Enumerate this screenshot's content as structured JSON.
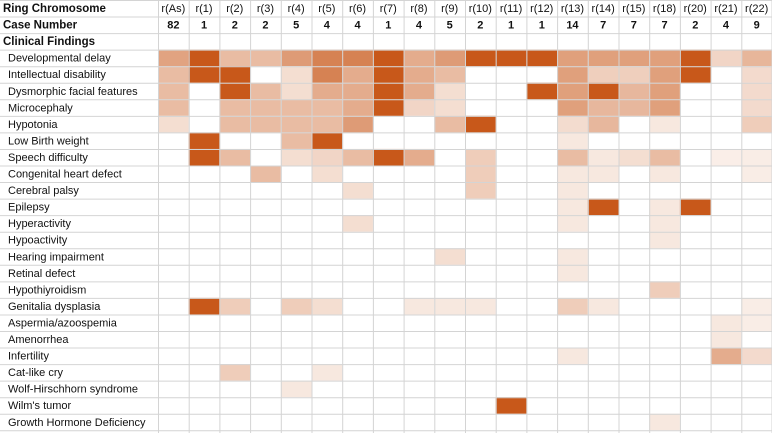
{
  "chart_data": {
    "type": "heatmap",
    "title": "",
    "header_label": "Ring Chromosome",
    "count_label": "Case Number",
    "section_label": "Clinical Findings",
    "columns": [
      "r(As)",
      "r(1)",
      "r(2)",
      "r(3)",
      "r(4)",
      "r(5)",
      "r(6)",
      "r(7)",
      "r(8)",
      "r(9)",
      "r(10)",
      "r(11)",
      "r(12)",
      "r(13)",
      "r(14)",
      "r(15)",
      "r(18)",
      "r(20)",
      "r(21)",
      "r(22)"
    ],
    "case_numbers": [
      "82",
      "1",
      "2",
      "2",
      "5",
      "4",
      "4",
      "1",
      "4",
      "5",
      "2",
      "1",
      "1",
      "14",
      "7",
      "7",
      "7",
      "2",
      "4",
      "9"
    ],
    "rows": [
      "Developmental delay",
      "Intellectual disability",
      "Dysmorphic facial features",
      "Microcephaly",
      "Hypotonia",
      "Low Birth weight",
      "Speech difficulty",
      "Congenital heart defect",
      "Cerebral palsy",
      "Epilepsy",
      "Hyperactivity",
      "Hypoactivity",
      "Hearing impairment",
      "Retinal defect",
      "Hypothiyroidism",
      "Genitalia dysplasia",
      "Aspermia/azoospemia",
      "Amenorrhea",
      "Infertility",
      "Cat-like cry",
      "Wolf-Hirschhorn syndrome",
      "Wilm's tumor",
      "Growth Hormone Deficiency"
    ],
    "values": [
      [
        0.55,
        1.0,
        0.4,
        0.4,
        0.6,
        0.75,
        0.75,
        1.0,
        0.5,
        0.6,
        1.0,
        1.0,
        1.0,
        0.57,
        0.57,
        0.57,
        0.57,
        1.0,
        0.25,
        0.44
      ],
      [
        0.4,
        1.0,
        1.0,
        0.0,
        0.2,
        0.75,
        0.5,
        1.0,
        0.5,
        0.4,
        0.0,
        0.0,
        0.0,
        0.57,
        0.29,
        0.29,
        0.57,
        1.0,
        0.0,
        0.22
      ],
      [
        0.4,
        0.0,
        1.0,
        0.4,
        0.2,
        0.5,
        0.5,
        1.0,
        0.5,
        0.2,
        0.0,
        0.0,
        1.0,
        0.57,
        1.0,
        0.43,
        0.57,
        0.0,
        0.0,
        0.22
      ],
      [
        0.4,
        0.0,
        0.4,
        0.4,
        0.4,
        0.4,
        0.5,
        1.0,
        0.25,
        0.2,
        0.0,
        0.0,
        0.0,
        0.57,
        0.43,
        0.43,
        0.57,
        0.0,
        0.0,
        0.22
      ],
      [
        0.2,
        0.0,
        0.4,
        0.4,
        0.4,
        0.4,
        0.6,
        0.0,
        0.0,
        0.4,
        1.0,
        0.0,
        0.0,
        0.21,
        0.43,
        0.0,
        0.14,
        0.0,
        0.0,
        0.3
      ],
      [
        0.0,
        1.0,
        0.0,
        0.0,
        0.4,
        1.0,
        0.0,
        0.0,
        0.0,
        0.0,
        0.0,
        0.0,
        0.0,
        0.14,
        0.0,
        0.0,
        0.0,
        0.0,
        0.0,
        0.0
      ],
      [
        0.0,
        1.0,
        0.4,
        0.0,
        0.2,
        0.25,
        0.4,
        1.0,
        0.5,
        0.0,
        0.3,
        0.0,
        0.0,
        0.4,
        0.14,
        0.2,
        0.4,
        0.0,
        0.1,
        0.11
      ],
      [
        0.0,
        0.0,
        0.0,
        0.4,
        0.0,
        0.2,
        0.0,
        0.0,
        0.0,
        0.0,
        0.3,
        0.0,
        0.0,
        0.14,
        0.14,
        0.0,
        0.14,
        0.0,
        0.0,
        0.11
      ],
      [
        0.0,
        0.0,
        0.0,
        0.0,
        0.0,
        0.0,
        0.2,
        0.0,
        0.0,
        0.0,
        0.3,
        0.0,
        0.0,
        0.14,
        0.0,
        0.0,
        0.0,
        0.0,
        0.0,
        0.0
      ],
      [
        0.0,
        0.0,
        0.0,
        0.0,
        0.0,
        0.0,
        0.0,
        0.0,
        0.0,
        0.0,
        0.0,
        0.0,
        0.0,
        0.14,
        1.0,
        0.0,
        0.14,
        1.0,
        0.0,
        0.0
      ],
      [
        0.0,
        0.0,
        0.0,
        0.0,
        0.0,
        0.0,
        0.2,
        0.0,
        0.0,
        0.0,
        0.0,
        0.0,
        0.0,
        0.14,
        0.0,
        0.0,
        0.14,
        0.0,
        0.0,
        0.0
      ],
      [
        0.0,
        0.0,
        0.0,
        0.0,
        0.0,
        0.0,
        0.0,
        0.0,
        0.0,
        0.0,
        0.0,
        0.0,
        0.0,
        0.0,
        0.0,
        0.0,
        0.14,
        0.0,
        0.0,
        0.0
      ],
      [
        0.0,
        0.0,
        0.0,
        0.0,
        0.0,
        0.0,
        0.0,
        0.0,
        0.0,
        0.2,
        0.0,
        0.0,
        0.0,
        0.14,
        0.0,
        0.0,
        0.0,
        0.0,
        0.0,
        0.0
      ],
      [
        0.0,
        0.0,
        0.0,
        0.0,
        0.0,
        0.0,
        0.0,
        0.0,
        0.0,
        0.0,
        0.0,
        0.0,
        0.0,
        0.14,
        0.0,
        0.0,
        0.0,
        0.0,
        0.0,
        0.0
      ],
      [
        0.0,
        0.0,
        0.0,
        0.0,
        0.0,
        0.0,
        0.0,
        0.0,
        0.0,
        0.0,
        0.0,
        0.0,
        0.0,
        0.0,
        0.0,
        0.0,
        0.3,
        0.0,
        0.0,
        0.0
      ],
      [
        0.0,
        1.0,
        0.3,
        0.0,
        0.3,
        0.2,
        0.0,
        0.0,
        0.14,
        0.14,
        0.14,
        0.0,
        0.0,
        0.3,
        0.14,
        0.0,
        0.0,
        0.0,
        0.0,
        0.11
      ],
      [
        0.0,
        0.0,
        0.0,
        0.0,
        0.0,
        0.0,
        0.0,
        0.0,
        0.0,
        0.0,
        0.0,
        0.0,
        0.0,
        0.0,
        0.0,
        0.0,
        0.0,
        0.0,
        0.14,
        0.11
      ],
      [
        0.0,
        0.0,
        0.0,
        0.0,
        0.0,
        0.0,
        0.0,
        0.0,
        0.0,
        0.0,
        0.0,
        0.0,
        0.0,
        0.0,
        0.0,
        0.0,
        0.0,
        0.0,
        0.14,
        0.0
      ],
      [
        0.0,
        0.0,
        0.0,
        0.0,
        0.0,
        0.0,
        0.0,
        0.0,
        0.0,
        0.0,
        0.0,
        0.0,
        0.0,
        0.14,
        0.0,
        0.0,
        0.0,
        0.0,
        0.5,
        0.22
      ],
      [
        0.0,
        0.0,
        0.3,
        0.0,
        0.0,
        0.14,
        0.0,
        0.0,
        0.0,
        0.0,
        0.0,
        0.0,
        0.0,
        0.0,
        0.0,
        0.0,
        0.0,
        0.0,
        0.0,
        0.0
      ],
      [
        0.0,
        0.0,
        0.0,
        0.0,
        0.14,
        0.0,
        0.0,
        0.0,
        0.0,
        0.0,
        0.0,
        0.0,
        0.0,
        0.0,
        0.0,
        0.0,
        0.0,
        0.0,
        0.0,
        0.0
      ],
      [
        0.0,
        0.0,
        0.0,
        0.0,
        0.0,
        0.0,
        0.0,
        0.0,
        0.0,
        0.0,
        0.0,
        1.0,
        0.0,
        0.0,
        0.0,
        0.0,
        0.0,
        0.0,
        0.0,
        0.0
      ],
      [
        0.0,
        0.0,
        0.0,
        0.0,
        0.0,
        0.0,
        0.0,
        0.0,
        0.0,
        0.0,
        0.0,
        0.0,
        0.0,
        0.0,
        0.0,
        0.0,
        0.14,
        0.0,
        0.0,
        0.0
      ]
    ],
    "value_range": [
      0,
      1
    ],
    "color_scale": {
      "low": "#ffffff",
      "high": "#c8581a"
    },
    "grid": true,
    "legend": "none"
  }
}
